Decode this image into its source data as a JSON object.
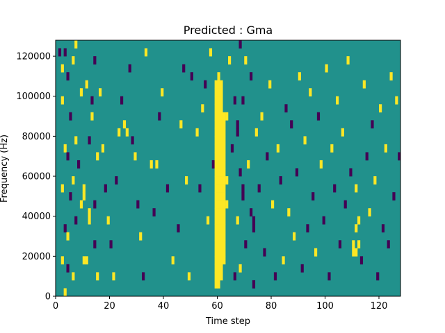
{
  "chart_data": {
    "type": "heatmap",
    "title": "Predicted : Gma",
    "xlabel": "Time step",
    "ylabel": "Frequency (Hz)",
    "xlim": [
      0,
      128
    ],
    "ylim": [
      0,
      128000
    ],
    "x_ticks": [
      {
        "value": 0,
        "label": "0"
      },
      {
        "value": 20,
        "label": "20"
      },
      {
        "value": 40,
        "label": "40"
      },
      {
        "value": 60,
        "label": "60"
      },
      {
        "value": 80,
        "label": "80"
      },
      {
        "value": 100,
        "label": "100"
      },
      {
        "value": 120,
        "label": "120"
      }
    ],
    "y_ticks": [
      {
        "value": 0,
        "label": "0"
      },
      {
        "value": 20000,
        "label": "20000"
      },
      {
        "value": 40000,
        "label": "40000"
      },
      {
        "value": 60000,
        "label": "60000"
      },
      {
        "value": 80000,
        "label": "80000"
      },
      {
        "value": 100000,
        "label": "100000"
      },
      {
        "value": 120000,
        "label": "120000"
      }
    ],
    "grid": false,
    "colormap": {
      "low": "#440154",
      "mid": "#21918c",
      "high": "#fde725"
    },
    "background_value": 0,
    "time_steps": 128,
    "frequency_bins": 32,
    "bin_height_hz": 4000,
    "cells": [
      {
        "t": 1,
        "f": 30,
        "v": -1
      },
      {
        "t": 2,
        "f": 28,
        "v": 1
      },
      {
        "t": 3,
        "f": 30,
        "v": -1
      },
      {
        "t": 4,
        "f": 27,
        "v": -1
      },
      {
        "t": 6,
        "f": 29,
        "v": 1
      },
      {
        "t": 7,
        "f": 31,
        "v": 1
      },
      {
        "t": 2,
        "f": 24,
        "v": 1
      },
      {
        "t": 5,
        "f": 22,
        "v": -1
      },
      {
        "t": 9,
        "f": 25,
        "v": 1
      },
      {
        "t": 3,
        "f": 18,
        "v": 1
      },
      {
        "t": 4,
        "f": 17,
        "v": -1
      },
      {
        "t": 7,
        "f": 19,
        "v": 1
      },
      {
        "t": 8,
        "f": 16,
        "v": -1
      },
      {
        "t": 2,
        "f": 13,
        "v": 1
      },
      {
        "t": 5,
        "f": 12,
        "v": -1
      },
      {
        "t": 6,
        "f": 14,
        "v": 1
      },
      {
        "t": 9,
        "f": 11,
        "v": 1
      },
      {
        "t": 3,
        "f": 8,
        "v": -1
      },
      {
        "t": 4,
        "f": 7,
        "v": 1
      },
      {
        "t": 7,
        "f": 9,
        "v": -1
      },
      {
        "t": 2,
        "f": 4,
        "v": 1
      },
      {
        "t": 4,
        "f": 3,
        "v": -1
      },
      {
        "t": 6,
        "f": 2,
        "v": 1
      },
      {
        "t": 3,
        "f": 0,
        "v": 1
      },
      {
        "t": 10,
        "f": 4,
        "v": 1
      },
      {
        "t": 11,
        "f": 4,
        "v": 1
      },
      {
        "t": 12,
        "f": 9,
        "v": 1
      },
      {
        "t": 12,
        "f": 10,
        "v": 1
      },
      {
        "t": 14,
        "f": 6,
        "v": -1
      },
      {
        "t": 15,
        "f": 2,
        "v": 1
      },
      {
        "t": 10,
        "f": 13,
        "v": 1
      },
      {
        "t": 10,
        "f": 12,
        "v": 1
      },
      {
        "t": 14,
        "f": 11,
        "v": -1
      },
      {
        "t": 12,
        "f": 19,
        "v": -1
      },
      {
        "t": 13,
        "f": 22,
        "v": 1
      },
      {
        "t": 15,
        "f": 17,
        "v": 1
      },
      {
        "t": 11,
        "f": 26,
        "v": 1
      },
      {
        "t": 14,
        "f": 29,
        "v": -1
      },
      {
        "t": 13,
        "f": 24,
        "v": -1
      },
      {
        "t": 16,
        "f": 25,
        "v": 1
      },
      {
        "t": 17,
        "f": 18,
        "v": 1
      },
      {
        "t": 18,
        "f": 13,
        "v": -1
      },
      {
        "t": 19,
        "f": 9,
        "v": 1
      },
      {
        "t": 20,
        "f": 6,
        "v": -1
      },
      {
        "t": 21,
        "f": 2,
        "v": 1
      },
      {
        "t": 22,
        "f": 14,
        "v": -1
      },
      {
        "t": 23,
        "f": 20,
        "v": 1
      },
      {
        "t": 24,
        "f": 24,
        "v": -1
      },
      {
        "t": 25,
        "f": 21,
        "v": 1
      },
      {
        "t": 26,
        "f": 20,
        "v": 1
      },
      {
        "t": 27,
        "f": 28,
        "v": -1
      },
      {
        "t": 28,
        "f": 19,
        "v": -1
      },
      {
        "t": 29,
        "f": 17,
        "v": 1
      },
      {
        "t": 30,
        "f": 11,
        "v": -1
      },
      {
        "t": 31,
        "f": 7,
        "v": 1
      },
      {
        "t": 32,
        "f": 2,
        "v": -1
      },
      {
        "t": 33,
        "f": 30,
        "v": 1
      },
      {
        "t": 35,
        "f": 16,
        "v": 1
      },
      {
        "t": 36,
        "f": 10,
        "v": -1
      },
      {
        "t": 37,
        "f": 16,
        "v": 1
      },
      {
        "t": 38,
        "f": 22,
        "v": -1
      },
      {
        "t": 39,
        "f": 25,
        "v": 1
      },
      {
        "t": 41,
        "f": 13,
        "v": -1
      },
      {
        "t": 43,
        "f": 4,
        "v": 1
      },
      {
        "t": 45,
        "f": 8,
        "v": -1
      },
      {
        "t": 46,
        "f": 21,
        "v": 1
      },
      {
        "t": 47,
        "f": 28,
        "v": -1
      },
      {
        "t": 48,
        "f": 14,
        "v": 1
      },
      {
        "t": 49,
        "f": 2,
        "v": 1
      },
      {
        "t": 50,
        "f": 27,
        "v": -1
      },
      {
        "t": 52,
        "f": 20,
        "v": 1
      },
      {
        "t": 53,
        "f": 13,
        "v": -1
      },
      {
        "t": 54,
        "f": 23,
        "v": 1
      },
      {
        "t": 55,
        "f": 26,
        "v": -1
      },
      {
        "t": 56,
        "f": 9,
        "v": 1
      },
      {
        "t": 57,
        "f": 30,
        "v": 1
      },
      {
        "t": 58,
        "f": 16,
        "v": -1
      },
      {
        "t": 59,
        "f": 1,
        "v": 1
      },
      {
        "t": 59,
        "f": 2,
        "v": 1
      },
      {
        "t": 59,
        "f": 3,
        "v": 1
      },
      {
        "t": 59,
        "f": 4,
        "v": 1
      },
      {
        "t": 59,
        "f": 5,
        "v": 1
      },
      {
        "t": 59,
        "f": 6,
        "v": 1
      },
      {
        "t": 59,
        "f": 7,
        "v": 1
      },
      {
        "t": 59,
        "f": 8,
        "v": 1
      },
      {
        "t": 59,
        "f": 9,
        "v": 1
      },
      {
        "t": 59,
        "f": 10,
        "v": 1
      },
      {
        "t": 59,
        "f": 11,
        "v": 1
      },
      {
        "t": 59,
        "f": 12,
        "v": 1
      },
      {
        "t": 59,
        "f": 13,
        "v": 1
      },
      {
        "t": 59,
        "f": 14,
        "v": 1
      },
      {
        "t": 59,
        "f": 15,
        "v": 1
      },
      {
        "t": 59,
        "f": 16,
        "v": 1
      },
      {
        "t": 59,
        "f": 17,
        "v": 1
      },
      {
        "t": 59,
        "f": 18,
        "v": 1
      },
      {
        "t": 59,
        "f": 19,
        "v": 1
      },
      {
        "t": 59,
        "f": 20,
        "v": 1
      },
      {
        "t": 59,
        "f": 21,
        "v": 1
      },
      {
        "t": 59,
        "f": 22,
        "v": 1
      },
      {
        "t": 59,
        "f": 23,
        "v": 1
      },
      {
        "t": 59,
        "f": 24,
        "v": 1
      },
      {
        "t": 59,
        "f": 25,
        "v": 1
      },
      {
        "t": 59,
        "f": 26,
        "v": 1
      },
      {
        "t": 60,
        "f": 1,
        "v": 1
      },
      {
        "t": 60,
        "f": 2,
        "v": 1
      },
      {
        "t": 60,
        "f": 3,
        "v": 1
      },
      {
        "t": 60,
        "f": 4,
        "v": 1
      },
      {
        "t": 60,
        "f": 5,
        "v": 1
      },
      {
        "t": 60,
        "f": 6,
        "v": 1
      },
      {
        "t": 60,
        "f": 7,
        "v": 1
      },
      {
        "t": 60,
        "f": 8,
        "v": 1
      },
      {
        "t": 60,
        "f": 9,
        "v": 1
      },
      {
        "t": 60,
        "f": 10,
        "v": 1
      },
      {
        "t": 60,
        "f": 11,
        "v": 1
      },
      {
        "t": 60,
        "f": 12,
        "v": 1
      },
      {
        "t": 60,
        "f": 13,
        "v": 1
      },
      {
        "t": 60,
        "f": 14,
        "v": 1
      },
      {
        "t": 60,
        "f": 15,
        "v": 1
      },
      {
        "t": 60,
        "f": 16,
        "v": 1
      },
      {
        "t": 60,
        "f": 17,
        "v": 1
      },
      {
        "t": 60,
        "f": 18,
        "v": 1
      },
      {
        "t": 60,
        "f": 19,
        "v": 1
      },
      {
        "t": 60,
        "f": 20,
        "v": 1
      },
      {
        "t": 60,
        "f": 21,
        "v": 1
      },
      {
        "t": 60,
        "f": 22,
        "v": 1
      },
      {
        "t": 60,
        "f": 23,
        "v": 1
      },
      {
        "t": 60,
        "f": 24,
        "v": 1
      },
      {
        "t": 60,
        "f": 25,
        "v": 1
      },
      {
        "t": 60,
        "f": 26,
        "v": 1
      },
      {
        "t": 60,
        "f": 27,
        "v": 1
      },
      {
        "t": 61,
        "f": 2,
        "v": 1
      },
      {
        "t": 61,
        "f": 3,
        "v": 1
      },
      {
        "t": 61,
        "f": 4,
        "v": 1
      },
      {
        "t": 61,
        "f": 5,
        "v": 1
      },
      {
        "t": 61,
        "f": 6,
        "v": 1
      },
      {
        "t": 61,
        "f": 7,
        "v": 1
      },
      {
        "t": 61,
        "f": 8,
        "v": 1
      },
      {
        "t": 61,
        "f": 9,
        "v": 1
      },
      {
        "t": 61,
        "f": 10,
        "v": 1
      },
      {
        "t": 61,
        "f": 11,
        "v": 1
      },
      {
        "t": 61,
        "f": 12,
        "v": 1
      },
      {
        "t": 61,
        "f": 13,
        "v": 1
      },
      {
        "t": 61,
        "f": 14,
        "v": 1
      },
      {
        "t": 61,
        "f": 15,
        "v": 1
      },
      {
        "t": 61,
        "f": 16,
        "v": 1
      },
      {
        "t": 61,
        "f": 17,
        "v": 1
      },
      {
        "t": 61,
        "f": 18,
        "v": 1
      },
      {
        "t": 61,
        "f": 19,
        "v": 1
      },
      {
        "t": 61,
        "f": 20,
        "v": 1
      },
      {
        "t": 61,
        "f": 21,
        "v": 1
      },
      {
        "t": 61,
        "f": 22,
        "v": 1
      },
      {
        "t": 61,
        "f": 23,
        "v": 1
      },
      {
        "t": 61,
        "f": 24,
        "v": 1
      },
      {
        "t": 61,
        "f": 25,
        "v": 1
      },
      {
        "t": 61,
        "f": 26,
        "v": 1
      },
      {
        "t": 62,
        "f": 4,
        "v": 1
      },
      {
        "t": 62,
        "f": 5,
        "v": 1
      },
      {
        "t": 62,
        "f": 6,
        "v": 1
      },
      {
        "t": 62,
        "f": 7,
        "v": 1
      },
      {
        "t": 62,
        "f": 8,
        "v": 1
      },
      {
        "t": 62,
        "f": 9,
        "v": 1
      },
      {
        "t": 62,
        "f": 10,
        "v": 1
      },
      {
        "t": 62,
        "f": 11,
        "v": 1
      },
      {
        "t": 62,
        "f": 12,
        "v": 1
      },
      {
        "t": 62,
        "f": 13,
        "v": 1
      },
      {
        "t": 62,
        "f": 14,
        "v": 1
      },
      {
        "t": 62,
        "f": 15,
        "v": 1
      },
      {
        "t": 62,
        "f": 16,
        "v": 1
      },
      {
        "t": 62,
        "f": 17,
        "v": 1
      },
      {
        "t": 62,
        "f": 18,
        "v": 1
      },
      {
        "t": 62,
        "f": 19,
        "v": 1
      },
      {
        "t": 62,
        "f": 20,
        "v": 1
      },
      {
        "t": 62,
        "f": 21,
        "v": 1
      },
      {
        "t": 62,
        "f": 22,
        "v": 1
      },
      {
        "t": 63,
        "f": 11,
        "v": 1
      },
      {
        "t": 63,
        "f": 14,
        "v": 1
      },
      {
        "t": 63,
        "f": 22,
        "v": 1
      },
      {
        "t": 64,
        "f": 29,
        "v": 1
      },
      {
        "t": 65,
        "f": 18,
        "v": -1
      },
      {
        "t": 66,
        "f": 2,
        "v": -1
      },
      {
        "t": 66,
        "f": 24,
        "v": -1
      },
      {
        "t": 67,
        "f": 9,
        "v": 1
      },
      {
        "t": 67,
        "f": 20,
        "v": -1
      },
      {
        "t": 67,
        "f": 21,
        "v": -1
      },
      {
        "t": 68,
        "f": 3,
        "v": 1
      },
      {
        "t": 68,
        "f": 15,
        "v": -1
      },
      {
        "t": 68,
        "f": 31,
        "v": -1
      },
      {
        "t": 69,
        "f": 12,
        "v": -1
      },
      {
        "t": 69,
        "f": 13,
        "v": -1
      },
      {
        "t": 69,
        "f": 24,
        "v": -1
      },
      {
        "t": 70,
        "f": 6,
        "v": -1
      },
      {
        "t": 70,
        "f": 29,
        "v": 1
      },
      {
        "t": 71,
        "f": 16,
        "v": 1
      },
      {
        "t": 72,
        "f": 10,
        "v": -1
      },
      {
        "t": 72,
        "f": 27,
        "v": -1
      },
      {
        "t": 73,
        "f": 1,
        "v": -1
      },
      {
        "t": 73,
        "f": 8,
        "v": -1
      },
      {
        "t": 73,
        "f": 9,
        "v": -1
      },
      {
        "t": 74,
        "f": 20,
        "v": 1
      },
      {
        "t": 75,
        "f": 13,
        "v": -1
      },
      {
        "t": 76,
        "f": 22,
        "v": 1
      },
      {
        "t": 77,
        "f": 5,
        "v": -1
      },
      {
        "t": 78,
        "f": 17,
        "v": -1
      },
      {
        "t": 79,
        "f": 26,
        "v": 1
      },
      {
        "t": 80,
        "f": 11,
        "v": 1
      },
      {
        "t": 81,
        "f": 2,
        "v": -1
      },
      {
        "t": 82,
        "f": 18,
        "v": 1
      },
      {
        "t": 83,
        "f": 14,
        "v": -1
      },
      {
        "t": 84,
        "f": 4,
        "v": 1
      },
      {
        "t": 85,
        "f": 23,
        "v": -1
      },
      {
        "t": 86,
        "f": 10,
        "v": 1
      },
      {
        "t": 87,
        "f": 21,
        "v": -1
      },
      {
        "t": 88,
        "f": 7,
        "v": 1
      },
      {
        "t": 89,
        "f": 15,
        "v": -1
      },
      {
        "t": 90,
        "f": 27,
        "v": 1
      },
      {
        "t": 91,
        "f": 3,
        "v": -1
      },
      {
        "t": 92,
        "f": 19,
        "v": 1
      },
      {
        "t": 93,
        "f": 8,
        "v": -1
      },
      {
        "t": 94,
        "f": 25,
        "v": 1
      },
      {
        "t": 95,
        "f": 12,
        "v": -1
      },
      {
        "t": 96,
        "f": 5,
        "v": 1
      },
      {
        "t": 97,
        "f": 22,
        "v": -1
      },
      {
        "t": 98,
        "f": 16,
        "v": 1
      },
      {
        "t": 99,
        "f": 9,
        "v": -1
      },
      {
        "t": 100,
        "f": 28,
        "v": 1
      },
      {
        "t": 101,
        "f": 2,
        "v": -1
      },
      {
        "t": 102,
        "f": 18,
        "v": 1
      },
      {
        "t": 103,
        "f": 13,
        "v": -1
      },
      {
        "t": 104,
        "f": 24,
        "v": 1
      },
      {
        "t": 105,
        "f": 6,
        "v": -1
      },
      {
        "t": 106,
        "f": 20,
        "v": 1
      },
      {
        "t": 107,
        "f": 11,
        "v": -1
      },
      {
        "t": 108,
        "f": 29,
        "v": 1
      },
      {
        "t": 109,
        "f": 15,
        "v": -1
      },
      {
        "t": 110,
        "f": 5,
        "v": 1
      },
      {
        "t": 110,
        "f": 6,
        "v": 1
      },
      {
        "t": 111,
        "f": 5,
        "v": 1
      },
      {
        "t": 111,
        "f": 8,
        "v": 1
      },
      {
        "t": 111,
        "f": 13,
        "v": 1
      },
      {
        "t": 112,
        "f": 6,
        "v": 1
      },
      {
        "t": 112,
        "f": 9,
        "v": 1
      },
      {
        "t": 113,
        "f": 4,
        "v": -1
      },
      {
        "t": 114,
        "f": 26,
        "v": 1
      },
      {
        "t": 115,
        "f": 17,
        "v": -1
      },
      {
        "t": 116,
        "f": 10,
        "v": 1
      },
      {
        "t": 117,
        "f": 21,
        "v": -1
      },
      {
        "t": 118,
        "f": 14,
        "v": 1
      },
      {
        "t": 119,
        "f": 2,
        "v": -1
      },
      {
        "t": 120,
        "f": 23,
        "v": 1
      },
      {
        "t": 121,
        "f": 8,
        "v": -1
      },
      {
        "t": 122,
        "f": 18,
        "v": 1
      },
      {
        "t": 123,
        "f": 6,
        "v": -1
      },
      {
        "t": 124,
        "f": 27,
        "v": 1
      },
      {
        "t": 125,
        "f": 12,
        "v": -1
      },
      {
        "t": 126,
        "f": 24,
        "v": 1
      },
      {
        "t": 127,
        "f": 17,
        "v": -1
      }
    ]
  }
}
